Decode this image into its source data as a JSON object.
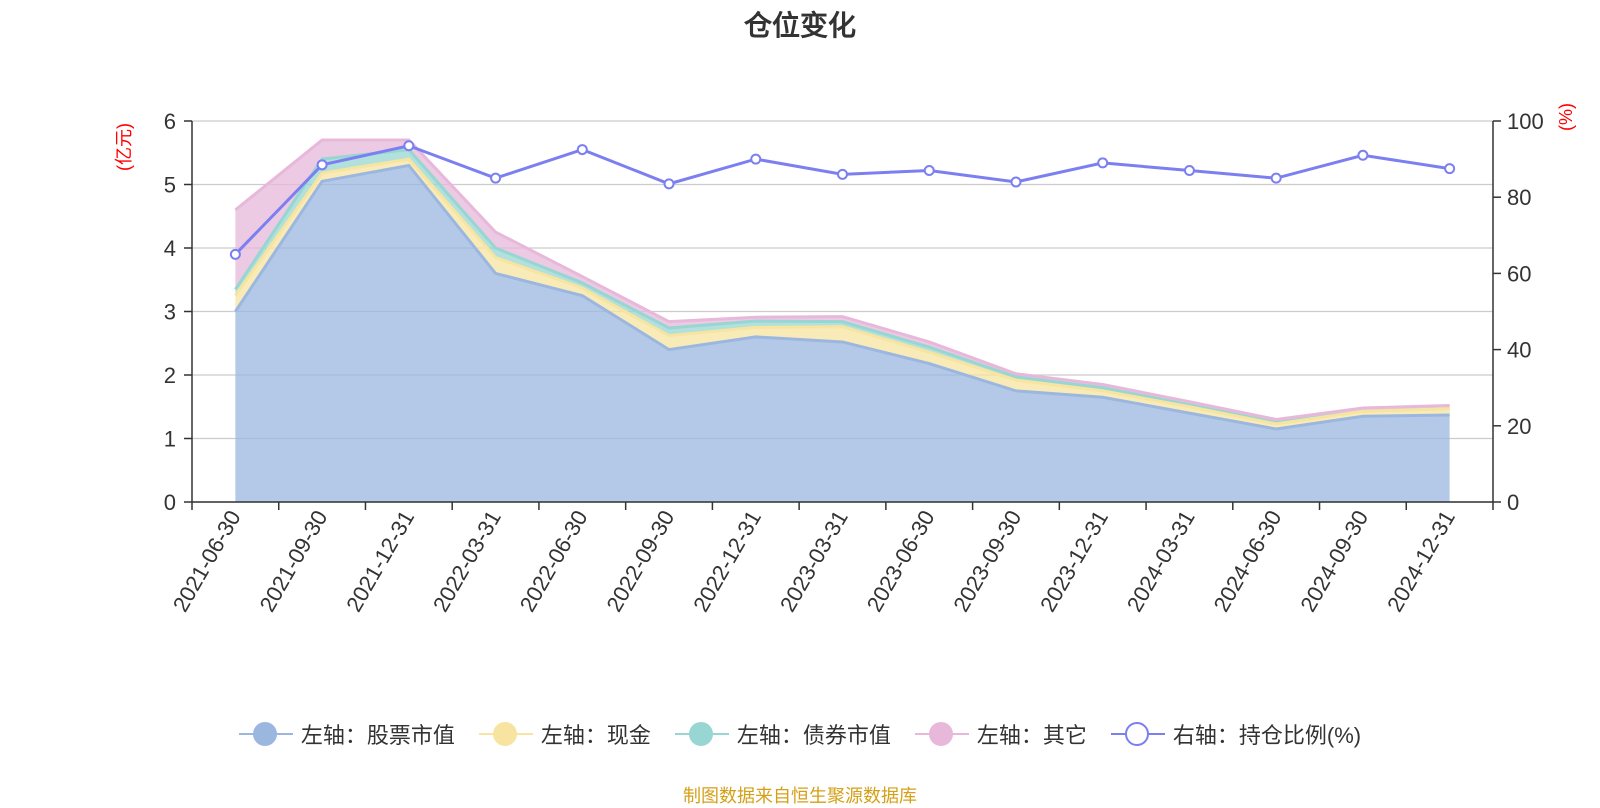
{
  "title": "仓位变化",
  "footer": "制图数据来自恒生聚源数据库",
  "chart_data": {
    "type": "area",
    "categories": [
      "2021-06-30",
      "2021-09-30",
      "2021-12-31",
      "2022-03-31",
      "2022-06-30",
      "2022-09-30",
      "2022-12-31",
      "2023-03-31",
      "2023-06-30",
      "2023-09-30",
      "2023-12-31",
      "2024-03-31",
      "2024-06-30",
      "2024-09-30",
      "2024-12-31"
    ],
    "stacked": true,
    "y_left": {
      "label": "(亿元)",
      "ylim": [
        0,
        6
      ],
      "ticks": [
        0,
        1,
        2,
        3,
        4,
        5,
        6
      ]
    },
    "y_right": {
      "label": "(%)",
      "ylim": [
        0,
        100
      ],
      "ticks": [
        0,
        20,
        40,
        60,
        80,
        100
      ]
    },
    "grid": true,
    "legend_position": "bottom",
    "series": [
      {
        "name": "左轴：股票市值",
        "axis": "left",
        "type": "area",
        "color": "#9bb7e0",
        "values": [
          3.0,
          5.05,
          5.3,
          3.6,
          3.25,
          2.4,
          2.6,
          2.52,
          2.18,
          1.75,
          1.65,
          1.4,
          1.15,
          1.35,
          1.37
        ]
      },
      {
        "name": "左轴：现金",
        "axis": "left",
        "type": "area",
        "color": "#f7e4a0",
        "values": [
          0.25,
          0.13,
          0.1,
          0.25,
          0.12,
          0.22,
          0.15,
          0.24,
          0.18,
          0.17,
          0.1,
          0.1,
          0.08,
          0.08,
          0.1
        ]
      },
      {
        "name": "左轴：债券市值",
        "axis": "left",
        "type": "area",
        "color": "#97d6d2",
        "values": [
          0.1,
          0.22,
          0.15,
          0.15,
          0.08,
          0.12,
          0.1,
          0.08,
          0.08,
          0.05,
          0.05,
          0.03,
          0.02,
          0.0,
          0.0
        ]
      },
      {
        "name": "左轴：其它",
        "axis": "left",
        "type": "area",
        "color": "#e7b8da",
        "values": [
          1.25,
          0.3,
          0.15,
          0.25,
          0.1,
          0.1,
          0.06,
          0.08,
          0.08,
          0.05,
          0.05,
          0.05,
          0.05,
          0.05,
          0.05
        ]
      },
      {
        "name": "右轴：持仓比例(%)",
        "axis": "right",
        "type": "line",
        "color": "#7b7ff0",
        "values": [
          65,
          88.5,
          93.5,
          85,
          92.5,
          83.5,
          90,
          86,
          87,
          84,
          89,
          87,
          85,
          91,
          87.5
        ]
      }
    ]
  }
}
